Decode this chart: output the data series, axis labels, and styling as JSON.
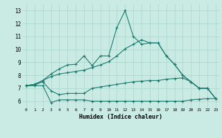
{
  "xlabel": "Humidex (Indice chaleur)",
  "bg_color": "#caeae4",
  "line_color": "#1a7a6e",
  "grid_color": "#a8d5cc",
  "xlim": [
    -0.5,
    23.5
  ],
  "ylim": [
    5.5,
    13.5
  ],
  "xticks": [
    0,
    1,
    2,
    3,
    4,
    5,
    6,
    7,
    8,
    9,
    10,
    11,
    12,
    13,
    14,
    15,
    16,
    17,
    18,
    19,
    20,
    21,
    22,
    23
  ],
  "yticks": [
    6,
    7,
    8,
    9,
    10,
    11,
    12,
    13
  ],
  "line1_x": [
    0,
    1,
    2,
    3,
    4,
    5,
    6,
    7,
    8,
    9,
    10,
    11,
    12,
    13,
    14,
    15,
    16,
    17,
    18,
    19,
    20,
    21,
    22,
    23
  ],
  "line1_y": [
    7.2,
    7.3,
    7.6,
    7.9,
    8.1,
    8.2,
    8.3,
    8.4,
    8.6,
    8.8,
    9.05,
    9.5,
    10.05,
    10.4,
    10.75,
    10.5,
    10.5,
    9.5,
    8.85,
    8.0,
    7.5,
    7.0,
    7.0,
    6.2
  ],
  "line2_x": [
    0,
    1,
    2,
    3,
    4,
    5,
    6,
    7,
    8,
    9,
    10,
    11,
    12,
    13,
    14,
    15,
    16,
    17,
    18,
    19,
    20,
    21,
    22,
    23
  ],
  "line2_y": [
    7.2,
    7.3,
    7.6,
    8.1,
    8.5,
    8.8,
    8.85,
    9.5,
    8.75,
    9.5,
    9.5,
    11.7,
    13.0,
    11.0,
    10.4,
    10.5,
    10.5,
    9.5,
    8.85,
    8.0,
    7.5,
    7.0,
    7.0,
    6.2
  ],
  "line3_x": [
    0,
    1,
    2,
    3,
    4,
    5,
    6,
    7,
    8,
    9,
    10,
    11,
    12,
    13,
    14,
    15,
    16,
    17,
    18,
    19,
    20,
    21,
    22,
    23
  ],
  "line3_y": [
    7.2,
    7.25,
    7.5,
    6.8,
    6.5,
    6.6,
    6.6,
    6.6,
    7.0,
    7.1,
    7.2,
    7.3,
    7.4,
    7.5,
    7.55,
    7.6,
    7.6,
    7.7,
    7.75,
    7.8,
    7.5,
    7.0,
    7.0,
    6.2
  ],
  "line4_x": [
    0,
    1,
    2,
    3,
    4,
    5,
    6,
    7,
    8,
    9,
    10,
    11,
    12,
    13,
    14,
    15,
    16,
    17,
    18,
    19,
    20,
    21,
    22,
    23
  ],
  "line4_y": [
    7.2,
    7.2,
    7.2,
    5.9,
    6.1,
    6.1,
    6.1,
    6.1,
    6.0,
    6.0,
    6.0,
    6.0,
    6.0,
    6.0,
    6.0,
    6.0,
    6.0,
    6.0,
    6.0,
    6.0,
    6.1,
    6.15,
    6.2,
    6.2
  ]
}
